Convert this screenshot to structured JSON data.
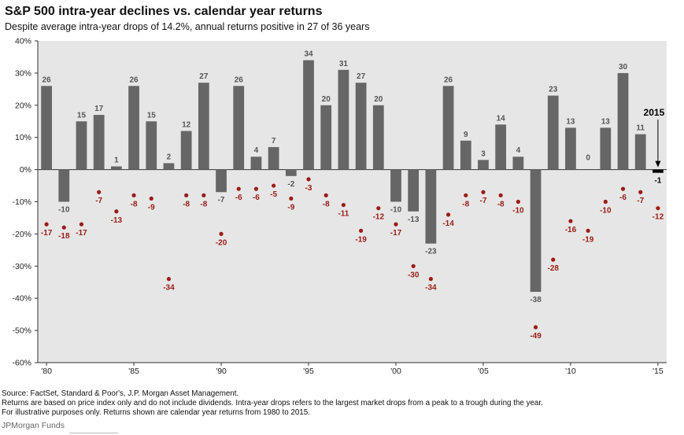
{
  "chart_data": {
    "type": "bar",
    "title": "S&P 500 intra-year declines vs. calendar year returns",
    "subtitle": "Despite average intra-year drops of 14.2%, annual returns positive in 27 of 36 years",
    "ylim": [
      -60,
      40
    ],
    "yticks": [
      40,
      30,
      20,
      10,
      0,
      -10,
      -20,
      -30,
      -40,
      -50,
      -60
    ],
    "ytick_labels": [
      "40%",
      "30%",
      "20%",
      "10%",
      "0%",
      "-10%",
      "-20%",
      "-30%",
      "-40%",
      "-50%",
      "-60%"
    ],
    "x": [
      1980,
      1981,
      1982,
      1983,
      1984,
      1985,
      1986,
      1987,
      1988,
      1989,
      1990,
      1991,
      1992,
      1993,
      1994,
      1995,
      1996,
      1997,
      1998,
      1999,
      2000,
      2001,
      2002,
      2003,
      2004,
      2005,
      2006,
      2007,
      2008,
      2009,
      2010,
      2011,
      2012,
      2013,
      2014,
      2015
    ],
    "xtick_years": [
      1980,
      1985,
      1990,
      1995,
      2000,
      2005,
      2010,
      2015
    ],
    "xtick_labels": [
      "'80",
      "'85",
      "'90",
      "'95",
      "'00",
      "'05",
      "'10",
      "'15"
    ],
    "series": [
      {
        "kind": "bar",
        "color": "#666666",
        "values": [
          26,
          -10,
          15,
          17,
          1,
          26,
          15,
          2,
          12,
          27,
          -7,
          26,
          4,
          7,
          -2,
          34,
          20,
          31,
          27,
          20,
          -10,
          -13,
          -23,
          26,
          9,
          3,
          14,
          4,
          -38,
          23,
          13,
          0,
          13,
          30,
          11,
          -1
        ],
        "labels": [
          "26",
          "-10",
          "15",
          "17",
          "1",
          "26",
          "15",
          "2",
          "12",
          "27",
          "-7",
          "26",
          "4",
          "7",
          "-2",
          "34",
          "20",
          "31",
          "27",
          "20",
          "-10",
          "-13",
          "-23",
          "26",
          "9",
          "3",
          "14",
          "4",
          "-38",
          "23",
          "13",
          "0",
          "13",
          "30",
          "11",
          "-1"
        ]
      },
      {
        "kind": "dot",
        "color": "#9b1b14",
        "values": [
          -17,
          -18,
          -17,
          -7,
          -13,
          -8,
          -9,
          -34,
          -8,
          -8,
          -20,
          -6,
          -6,
          -5,
          -9,
          -3,
          -8,
          -11,
          -19,
          -12,
          -17,
          -30,
          -34,
          -14,
          -8,
          -7,
          -8,
          -10,
          -49,
          -28,
          -16,
          -19,
          -10,
          -6,
          -7,
          -12
        ],
        "labels": [
          "-17",
          "-18",
          "-17",
          "-7",
          "-13",
          "-8",
          "-9",
          "-34",
          "-8",
          "-8",
          "-20",
          "-6",
          "-6",
          "-5",
          "-9",
          "-3",
          "-8",
          "-11",
          "-19",
          "-12",
          "-17",
          "-30",
          "-34",
          "-14",
          "-8",
          "-7",
          "-8",
          "-10",
          "-49",
          "-28",
          "-16",
          "-19",
          "-10",
          "-6",
          "-7",
          "-12"
        ]
      }
    ],
    "annotation": {
      "text": "2015",
      "year": 2015
    },
    "grid": false
  },
  "footer": {
    "source": "Source: FactSet, Standard & Poor's, J.P. Morgan Asset Management.",
    "notes": "Returns are based on price index only and do not include dividends. Intra-year drops refers to the largest market drops from a peak to a trough during the year. For illustrative purposes only. Returns shown are calendar year returns from 1980 to 2015.",
    "brand": "JPMorgan Funds"
  }
}
